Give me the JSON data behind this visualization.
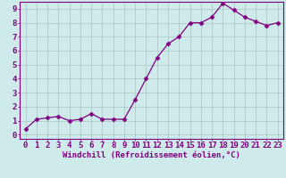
{
  "x": [
    0,
    1,
    2,
    3,
    4,
    5,
    6,
    7,
    8,
    9,
    10,
    11,
    12,
    13,
    14,
    15,
    16,
    17,
    18,
    19,
    20,
    21,
    22,
    23
  ],
  "y": [
    0.4,
    1.1,
    1.2,
    1.3,
    1.0,
    1.1,
    1.5,
    1.1,
    1.1,
    1.1,
    2.5,
    4.0,
    5.5,
    6.5,
    7.0,
    8.0,
    8.0,
    8.4,
    9.4,
    8.9,
    8.4,
    8.1,
    7.8,
    8.0
  ],
  "line_color": "#800080",
  "marker": "D",
  "marker_size": 2.5,
  "bg_color": "#ceeaea",
  "grid_color": "#b0c8c8",
  "axis_color": "#800080",
  "xlabel": "Windchill (Refroidissement éolien,°C)",
  "xlim": [
    0,
    23
  ],
  "ylim": [
    0,
    9
  ],
  "xticks": [
    0,
    1,
    2,
    3,
    4,
    5,
    6,
    7,
    8,
    9,
    10,
    11,
    12,
    13,
    14,
    15,
    16,
    17,
    18,
    19,
    20,
    21,
    22,
    23
  ],
  "yticks": [
    0,
    1,
    2,
    3,
    4,
    5,
    6,
    7,
    8,
    9
  ],
  "xlabel_fontsize": 6.5,
  "tick_fontsize": 6.5
}
